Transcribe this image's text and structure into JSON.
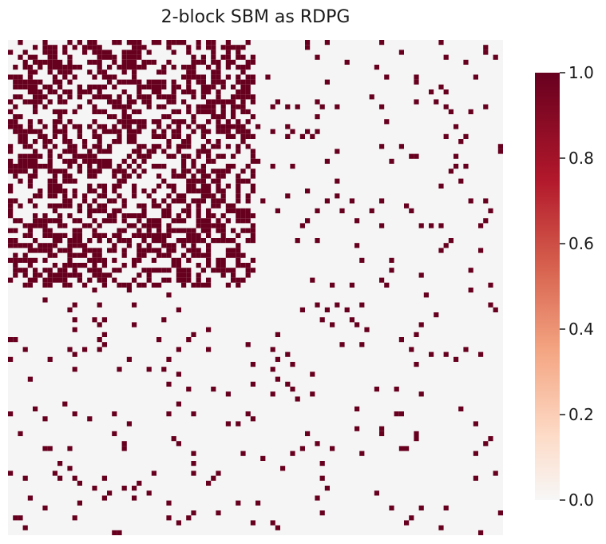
{
  "chart_data": {
    "type": "heatmap",
    "title": "2-block SBM as RDPG",
    "n_nodes": 100,
    "blocks": [
      {
        "label": "",
        "nodes": 50
      },
      {
        "label": "",
        "nodes": 50
      }
    ],
    "block_edge_probability": {
      "within_block_1": 0.5,
      "within_block_2": 0.03,
      "between_blocks": 0.05
    },
    "value_range": [
      0.0,
      1.0
    ],
    "colormap": "RdBu_r",
    "colors": {
      "zero": "#f5f5f5",
      "one": "#67001f"
    },
    "colorbar": {
      "ticks": [
        "0.0",
        "0.2",
        "0.4",
        "0.6",
        "0.8",
        "1.0"
      ],
      "values": [
        0.0,
        0.2,
        0.4,
        0.6,
        0.8,
        1.0
      ]
    },
    "xlabel": "",
    "ylabel": "",
    "grid": false,
    "axis_ticks_visible": false
  }
}
